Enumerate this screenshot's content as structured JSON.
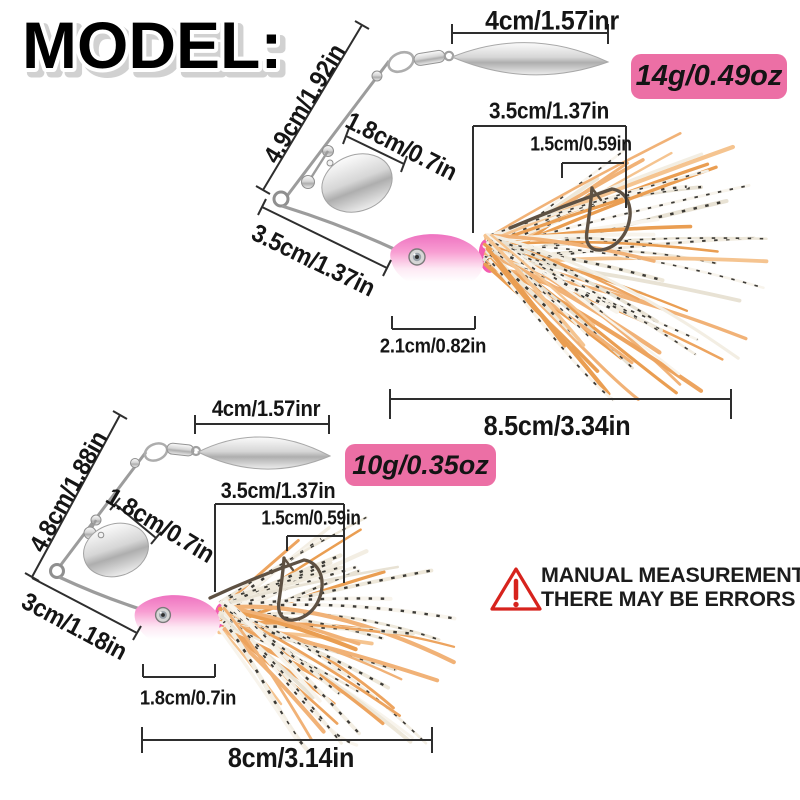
{
  "title": "MODEL:",
  "lures": [
    {
      "id": "spinnerbait-14g",
      "weight_badge": "14g/0.49oz",
      "measurements": {
        "blade_length": "4cm/1.57inr",
        "upper_arm": "4.9cm/1.92in",
        "colorado_blade": "1.8cm/0.7in",
        "lower_arm": "3.5cm/1.37in",
        "skirt_width": "3.5cm/1.37in",
        "hook_gap": "1.5cm/0.59in",
        "head_length": "2.1cm/0.82in",
        "total_length": "8.5cm/3.34in"
      }
    },
    {
      "id": "spinnerbait-10g",
      "weight_badge": "10g/0.35oz",
      "measurements": {
        "blade_length": "4cm/1.57inr",
        "upper_arm": "4.8cm/1.88in",
        "colorado_blade": "1.8cm/0.7in",
        "lower_arm": "3cm/1.18in",
        "skirt_width": "3.5cm/1.37in",
        "hook_gap": "1.5cm/0.59in",
        "head_length": "1.8cm/0.7in",
        "total_length": "8cm/3.14in"
      }
    }
  ],
  "warning": {
    "icon": "warning-triangle-icon",
    "line1": "MANUAL MEASUREMENT,",
    "line2": "THERE MAY BE ERRORS"
  },
  "colors": {
    "badge_pink": "#ec6fa5",
    "head_pink": "#f272c2",
    "skirt_orange": "#edaa6a",
    "skirt_white": "#f3eee4",
    "warning_red": "#d7231d",
    "metal_silver": "#cfcfcf",
    "dimension_text": "#151515"
  }
}
